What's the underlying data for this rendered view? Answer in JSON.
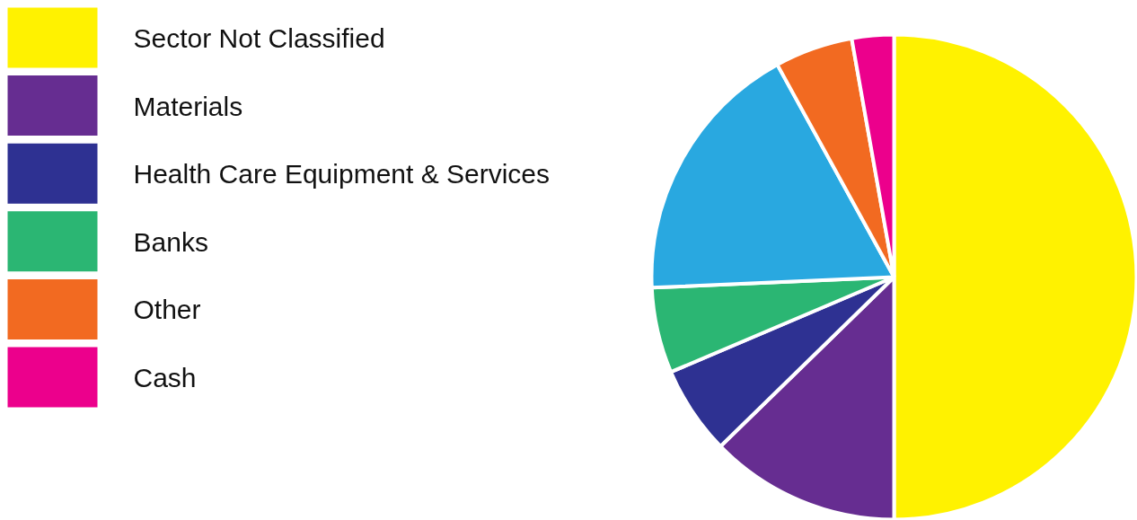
{
  "chart_data": {
    "type": "pie",
    "categories": [
      "Sector Not Classified",
      "Materials",
      "Health Care Equipment & Services",
      "Banks",
      null,
      "Other",
      "Cash"
    ],
    "values": [
      50,
      12.7,
      5.9,
      5.7,
      17.7,
      5.2,
      2.8
    ],
    "colors": [
      "#fff200",
      "#662d91",
      "#2e3192",
      "#2bb673",
      "#29a8e0",
      "#f26a21",
      "#ec008c"
    ],
    "legend": "left"
  }
}
